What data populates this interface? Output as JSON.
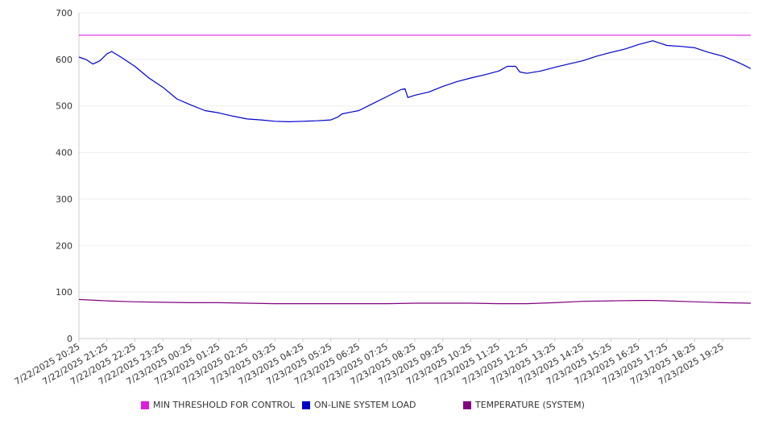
{
  "chart_data": {
    "type": "line",
    "title": "",
    "xlabel": "",
    "ylabel": "",
    "ylim": [
      0,
      700
    ],
    "yticks": [
      0,
      100,
      200,
      300,
      400,
      500,
      600,
      700
    ],
    "x_tick_labels": [
      "7/22/2025 20:25",
      "7/22/2025 21:25",
      "7/22/2025 22:25",
      "7/22/2025 23:25",
      "7/23/2025 00:25",
      "7/23/2025 01:25",
      "7/23/2025 02:25",
      "7/23/2025 03:25",
      "7/23/2025 04:25",
      "7/23/2025 05:25",
      "7/23/2025 06:25",
      "7/23/2025 07:25",
      "7/23/2025 08:25",
      "7/23/2025 09:25",
      "7/23/2025 10:25",
      "7/23/2025 11:25",
      "7/23/2025 12:25",
      "7/23/2025 13:25",
      "7/23/2025 14:25",
      "7/23/2025 15:25",
      "7/23/2025 16:25",
      "7/23/2025 17:25",
      "7/23/2025 18:25",
      "7/23/2025 19:25"
    ],
    "x_range_hours": [
      0,
      24
    ],
    "grid": true,
    "legend_position": "bottom",
    "series": [
      {
        "name": "MIN THRESHOLD FOR CONTROL",
        "color": "#e01be0",
        "points": [
          [
            0,
            652
          ],
          [
            24,
            652
          ]
        ]
      },
      {
        "name": "ON-LINE SYSTEM LOAD",
        "color": "#0000cc",
        "points": [
          [
            0,
            605
          ],
          [
            0.25,
            600
          ],
          [
            0.5,
            590
          ],
          [
            0.75,
            597
          ],
          [
            1.0,
            612
          ],
          [
            1.17,
            617
          ],
          [
            1.5,
            605
          ],
          [
            2.0,
            585
          ],
          [
            2.5,
            560
          ],
          [
            3.0,
            540
          ],
          [
            3.5,
            515
          ],
          [
            4.0,
            502
          ],
          [
            4.5,
            490
          ],
          [
            5.0,
            485
          ],
          [
            5.5,
            478
          ],
          [
            6.0,
            472
          ],
          [
            6.5,
            470
          ],
          [
            7.0,
            467
          ],
          [
            7.5,
            466
          ],
          [
            8.0,
            467
          ],
          [
            8.5,
            468
          ],
          [
            9.0,
            470
          ],
          [
            9.25,
            476
          ],
          [
            9.4,
            483
          ],
          [
            9.75,
            487
          ],
          [
            10.0,
            490
          ],
          [
            10.5,
            505
          ],
          [
            11.0,
            520
          ],
          [
            11.5,
            535
          ],
          [
            11.65,
            537
          ],
          [
            11.75,
            518
          ],
          [
            12.0,
            523
          ],
          [
            12.5,
            530
          ],
          [
            13.0,
            542
          ],
          [
            13.5,
            552
          ],
          [
            14.0,
            560
          ],
          [
            14.5,
            567
          ],
          [
            15.0,
            575
          ],
          [
            15.3,
            585
          ],
          [
            15.6,
            585
          ],
          [
            15.75,
            573
          ],
          [
            16.0,
            570
          ],
          [
            16.5,
            575
          ],
          [
            17.0,
            583
          ],
          [
            17.5,
            590
          ],
          [
            18.0,
            597
          ],
          [
            18.5,
            607
          ],
          [
            19.0,
            615
          ],
          [
            19.5,
            622
          ],
          [
            20.0,
            632
          ],
          [
            20.5,
            640
          ],
          [
            20.75,
            635
          ],
          [
            21.0,
            630
          ],
          [
            21.5,
            628
          ],
          [
            22.0,
            625
          ],
          [
            22.5,
            615
          ],
          [
            23.0,
            607
          ],
          [
            23.5,
            595
          ],
          [
            23.75,
            588
          ],
          [
            24.0,
            580
          ]
        ]
      },
      {
        "name": "TEMPERATURE (SYSTEM)",
        "color": "#800080",
        "points": [
          [
            0,
            84
          ],
          [
            1.0,
            81
          ],
          [
            2.0,
            79
          ],
          [
            3.0,
            78
          ],
          [
            4.0,
            77
          ],
          [
            5.0,
            77
          ],
          [
            6.0,
            76
          ],
          [
            7.0,
            75
          ],
          [
            8.0,
            75
          ],
          [
            9.0,
            75
          ],
          [
            10.0,
            75
          ],
          [
            11.0,
            75
          ],
          [
            12.0,
            76
          ],
          [
            13.0,
            76
          ],
          [
            14.0,
            76
          ],
          [
            15.0,
            75
          ],
          [
            16.0,
            75
          ],
          [
            17.0,
            77
          ],
          [
            18.0,
            80
          ],
          [
            19.0,
            81
          ],
          [
            20.0,
            82
          ],
          [
            20.5,
            82
          ],
          [
            21.0,
            81
          ],
          [
            22.0,
            79
          ],
          [
            23.0,
            77
          ],
          [
            24.0,
            76
          ]
        ]
      }
    ]
  }
}
